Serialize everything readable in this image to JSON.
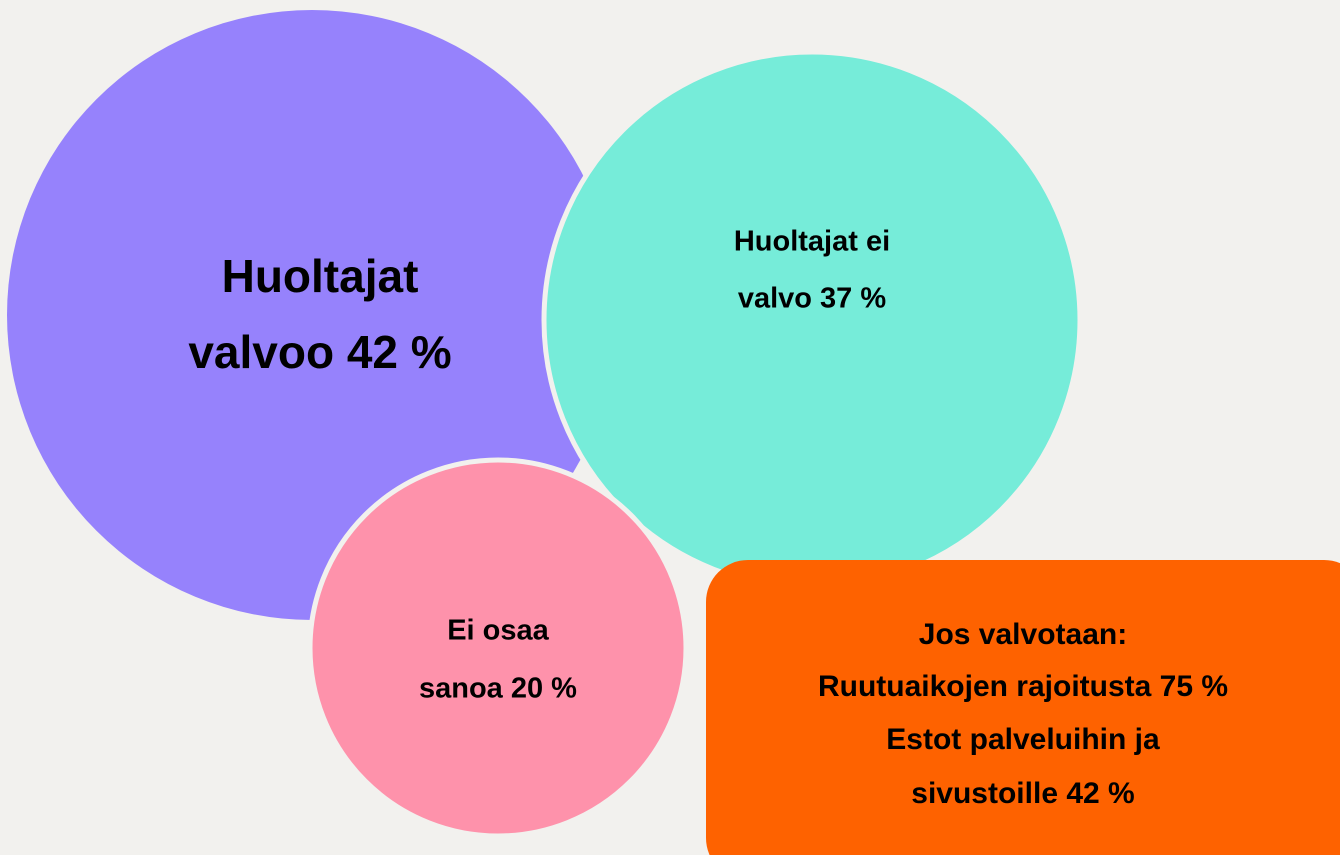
{
  "nodes": [
    {
      "lines": [
        "Huoltajat",
        "valvoo 42 %"
      ]
    },
    {
      "lines": [
        "Huoltajat ei",
        "valvo 37 %"
      ]
    },
    {
      "lines": [
        "Ei osaa",
        "sanoa 20 %"
      ]
    },
    {
      "lines": [
        "Jos valvotaan:",
        "Ruutuaikojen rajoitusta 75 %",
        "Estot palveluihin ja",
        "sivustoille 42 %"
      ]
    }
  ]
}
